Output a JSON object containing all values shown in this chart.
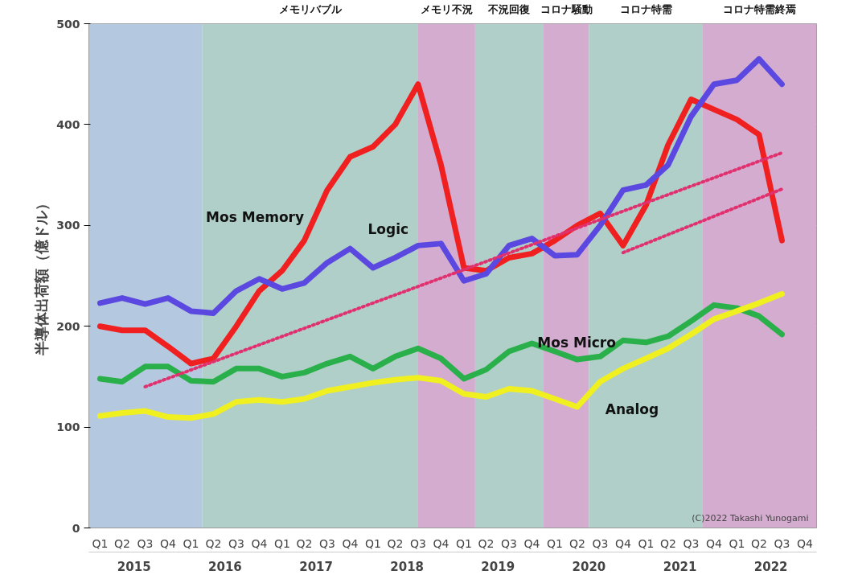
{
  "chart_data": {
    "type": "line",
    "ylabel": "半導体出荷額（億ドル）",
    "x": [
      "2015-02-15",
      "2015-05-15",
      "2015-08-15",
      "2015-11-15",
      "2016-02-15",
      "2016-05-15",
      "2016-08-15",
      "2016-11-15",
      "2017-02-15",
      "2017-05-15",
      "2017-08-15",
      "2017-11-15",
      "2018-02-15",
      "2018-05-15",
      "2018-08-15",
      "2018-11-15",
      "2019-02-15",
      "2019-05-15",
      "2019-08-15",
      "2019-11-15",
      "2020-02-15",
      "2020-05-15",
      "2020-08-15",
      "2020-11-15",
      "2021-02-15",
      "2021-05-15",
      "2021-08-15",
      "2021-11-15",
      "2022-02-15",
      "2022-05-15",
      "2022-08-15"
    ],
    "xlim": [
      "2015-01-01",
      "2023-01-01"
    ],
    "xticks": [
      {
        "value": "2015-02-15",
        "label": "Q1"
      },
      {
        "value": "2015-05-15",
        "label": "Q2"
      },
      {
        "value": "2015-08-15",
        "label": "Q3"
      },
      {
        "value": "2015-11-15",
        "label": "Q4"
      },
      {
        "value": "2016-02-15",
        "label": "Q1"
      },
      {
        "value": "2016-05-15",
        "label": "Q2"
      },
      {
        "value": "2016-08-15",
        "label": "Q3"
      },
      {
        "value": "2016-11-15",
        "label": "Q4"
      },
      {
        "value": "2017-02-15",
        "label": "Q1"
      },
      {
        "value": "2017-05-15",
        "label": "Q2"
      },
      {
        "value": "2017-08-15",
        "label": "Q3"
      },
      {
        "value": "2017-11-15",
        "label": "Q4"
      },
      {
        "value": "2018-02-15",
        "label": "Q1"
      },
      {
        "value": "2018-05-15",
        "label": "Q2"
      },
      {
        "value": "2018-08-15",
        "label": "Q3"
      },
      {
        "value": "2018-11-15",
        "label": "Q4"
      },
      {
        "value": "2019-02-15",
        "label": "Q1"
      },
      {
        "value": "2019-05-15",
        "label": "Q2"
      },
      {
        "value": "2019-08-15",
        "label": "Q3"
      },
      {
        "value": "2019-11-15",
        "label": "Q4"
      },
      {
        "value": "2020-02-15",
        "label": "Q1"
      },
      {
        "value": "2020-05-15",
        "label": "Q2"
      },
      {
        "value": "2020-08-15",
        "label": "Q3"
      },
      {
        "value": "2020-11-15",
        "label": "Q4"
      },
      {
        "value": "2021-02-15",
        "label": "Q1"
      },
      {
        "value": "2021-05-15",
        "label": "Q2"
      },
      {
        "value": "2021-08-15",
        "label": "Q3"
      },
      {
        "value": "2021-11-15",
        "label": "Q4"
      },
      {
        "value": "2022-02-15",
        "label": "Q1"
      },
      {
        "value": "2022-05-15",
        "label": "Q2"
      },
      {
        "value": "2022-08-15",
        "label": "Q3"
      },
      {
        "value": "2022-11-15",
        "label": "Q4"
      }
    ],
    "ylim": [
      0,
      500
    ],
    "yticks": [
      0,
      100,
      200,
      300,
      400,
      500
    ],
    "grid": "y",
    "series": [
      {
        "name": "Mos Memory",
        "color": "#f02020",
        "values": [
          200,
          196,
          196,
          180,
          163,
          168,
          200,
          235,
          255,
          285,
          335,
          368,
          378,
          400,
          440,
          360,
          258,
          255,
          268,
          272,
          285,
          300,
          312,
          280,
          320,
          380,
          425,
          415,
          405,
          390,
          285
        ]
      },
      {
        "name": "Logic",
        "color": "#5a48e0",
        "values": [
          223,
          228,
          222,
          228,
          215,
          213,
          235,
          247,
          237,
          243,
          263,
          277,
          258,
          268,
          280,
          282,
          245,
          252,
          280,
          287,
          270,
          271,
          300,
          335,
          340,
          360,
          408,
          440,
          444,
          465,
          440
        ]
      },
      {
        "name": "Mos Micro",
        "color": "#2ab04a",
        "values": [
          148,
          145,
          160,
          160,
          146,
          145,
          158,
          158,
          150,
          154,
          163,
          170,
          158,
          170,
          178,
          168,
          148,
          157,
          175,
          183,
          175,
          167,
          170,
          186,
          184,
          190,
          205,
          221,
          218,
          210,
          192
        ]
      },
      {
        "name": "Analog",
        "color": "#f0f020",
        "values": [
          111,
          114,
          116,
          110,
          109,
          113,
          125,
          127,
          125,
          128,
          136,
          140,
          144,
          147,
          149,
          146,
          133,
          130,
          138,
          136,
          128,
          120,
          145,
          158,
          168,
          178,
          192,
          207,
          215,
          223,
          232
        ]
      },
      {
        "color": "#e0306e",
        "line_style": "dotted",
        "x": [
          "2015-08-15",
          "2022-08-15"
        ],
        "values": [
          140,
          372
        ]
      },
      {
        "color": "#e0306e",
        "line_style": "dotted",
        "x": [
          "2020-11-15",
          "2022-08-15"
        ],
        "values": [
          273,
          336
        ]
      }
    ],
    "bands": [
      {
        "axis": "x",
        "from": "2015-01-01",
        "to": "2016-04-01",
        "color": "#b4c8e0"
      },
      {
        "axis": "x",
        "from": "2016-04-01",
        "to": "2018-08-15",
        "color": "#b0cfc8",
        "label": "メモリバブル"
      },
      {
        "axis": "x",
        "from": "2018-08-15",
        "to": "2019-04-01",
        "color": "#d4acd0",
        "label": "メモリ不況"
      },
      {
        "axis": "x",
        "from": "2019-04-01",
        "to": "2020-01-01",
        "color": "#b0cfc8",
        "label": "不況回復"
      },
      {
        "axis": "x",
        "from": "2020-01-01",
        "to": "2020-07-01",
        "color": "#d4acd0",
        "label": "コロナ騒動"
      },
      {
        "axis": "x",
        "from": "2020-07-01",
        "to": "2021-10-01",
        "color": "#b0cfc8",
        "label": "コロナ特需"
      },
      {
        "axis": "x",
        "from": "2021-10-01",
        "to": "2023-01-01",
        "color": "#d4acd0",
        "label": "コロナ特需終焉"
      }
    ],
    "annotations": [
      "2015",
      "2016",
      "2017",
      "2018",
      "2019",
      "2020",
      "2021",
      "2022",
      "(C)2022 Takashi Yunogami"
    ]
  }
}
